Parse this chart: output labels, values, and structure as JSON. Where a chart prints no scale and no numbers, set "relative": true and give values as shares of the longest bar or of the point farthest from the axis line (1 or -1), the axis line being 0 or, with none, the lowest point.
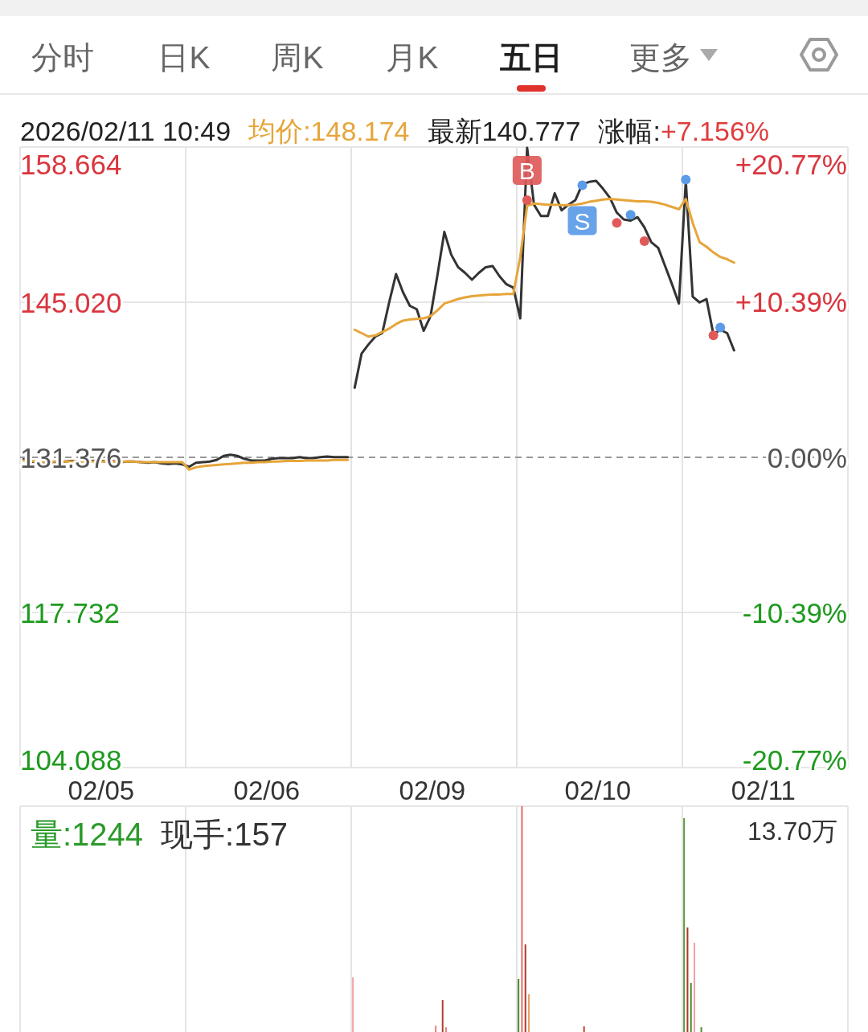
{
  "chart_data": [
    {
      "type": "other",
      "annotations": [
        "分时",
        "日K",
        "周K",
        "月K",
        "五日",
        "更多"
      ]
    },
    {
      "type": "line",
      "annotations": [
        "2026/02/11 10:49",
        "均价:148.174",
        "最新140.777",
        "涨幅:",
        "+7.156%"
      ],
      "categories": [
        null,
        null,
        null,
        null,
        null,
        null,
        null,
        null,
        null,
        null,
        null,
        null,
        null,
        null,
        null,
        null,
        null,
        null,
        null,
        null,
        null,
        null,
        null,
        null,
        null,
        null,
        null,
        null,
        null,
        null,
        null,
        null,
        null,
        null,
        null,
        null,
        null,
        null,
        null,
        null,
        null,
        null,
        null,
        null,
        null,
        null,
        null,
        null,
        null,
        null,
        null,
        null,
        null,
        null,
        null,
        null,
        null,
        null,
        null,
        null,
        null,
        null,
        null,
        null,
        null,
        null,
        null,
        null,
        null,
        null,
        null,
        null,
        null,
        null,
        null,
        null,
        null,
        null,
        null,
        null,
        null,
        null,
        null,
        null,
        null,
        null,
        null,
        null,
        null,
        null,
        null,
        null,
        null,
        null,
        null,
        null,
        null,
        null,
        null,
        null,
        null,
        null,
        null,
        null,
        null,
        null,
        null,
        null,
        null,
        null,
        null,
        null,
        null,
        null,
        null,
        null,
        null,
        null,
        null,
        null
      ],
      "series": [
        {
          "color": "#333333",
          "values": [
            131.2,
            131.0,
            130.9,
            130.8,
            130.85,
            130.9,
            131.0,
            131.05,
            131.0,
            131.1,
            131.05,
            131.1,
            131.0,
            131.05,
            130.95,
            131.0,
            131.0,
            130.95,
            130.9,
            130.95,
            130.85,
            130.8,
            130.85,
            130.75,
            130.55,
            130.9,
            130.95,
            131.0,
            131.15,
            131.5,
            131.6,
            131.5,
            131.25,
            131.1,
            131.1,
            131.1,
            131.25,
            131.3,
            131.3,
            131.3,
            131.4,
            131.3,
            131.3,
            131.4,
            131.45,
            131.4,
            131.4,
            131.4,
            null,
            null,
            null,
            null,
            null,
            null,
            null,
            null,
            null,
            null,
            null,
            null,
            null,
            null,
            null,
            null,
            null,
            null,
            null,
            null,
            null,
            null,
            null,
            null,
            null,
            null,
            null,
            null,
            null,
            null,
            null,
            null,
            null,
            null,
            null,
            null,
            null,
            null,
            null,
            null,
            null,
            null,
            null,
            null,
            null,
            null,
            null,
            null,
            null,
            null,
            null,
            null,
            null,
            null,
            null,
            null,
            null,
            null,
            null,
            null,
            null,
            null,
            null,
            null,
            null,
            null,
            null,
            null,
            null,
            null,
            null,
            null
          ]
        },
        {
          "color": "#333333",
          "values": [
            null,
            null,
            null,
            null,
            null,
            null,
            null,
            null,
            null,
            null,
            null,
            null,
            null,
            null,
            null,
            null,
            null,
            null,
            null,
            null,
            null,
            null,
            null,
            null,
            null,
            null,
            null,
            null,
            null,
            null,
            null,
            null,
            null,
            null,
            null,
            null,
            null,
            null,
            null,
            null,
            null,
            null,
            null,
            null,
            null,
            null,
            null,
            null,
            137.5,
            140.5,
            141.3,
            142.0,
            142.3,
            145.0,
            147.5,
            145.9,
            144.7,
            144.4,
            142.5,
            143.8,
            147.4,
            151.2,
            149.2,
            148.1,
            147.6,
            147.0,
            147.6,
            148.1,
            148.2,
            147.3,
            146.6,
            146.3,
            143.6,
            158.6,
            153.6,
            152.6,
            152.6,
            154.6,
            153.1,
            153.6,
            154.0,
            155.4,
            155.6,
            155.7,
            155.0,
            154.2,
            152.9,
            152.3,
            152.2,
            152.5,
            151.6,
            150.3,
            149.8,
            148.2,
            146.6,
            144.9,
            155.7,
            145.5,
            145.0,
            145.3,
            142.2,
            142.6,
            142.3,
            140.78,
            null,
            null,
            null,
            null,
            null,
            null,
            null,
            null,
            null,
            null,
            null,
            null,
            null,
            null,
            null,
            null
          ]
        },
        {
          "color": "#e6a53a",
          "values": [
            131.1,
            131.05,
            131.0,
            131.0,
            131.0,
            131.0,
            131.0,
            131.0,
            131.0,
            131.0,
            131.0,
            131.0,
            131.0,
            131.0,
            131.0,
            131.0,
            131.0,
            130.95,
            130.95,
            130.95,
            130.95,
            130.95,
            130.95,
            130.95,
            130.3,
            130.5,
            130.6,
            130.65,
            130.7,
            130.75,
            130.8,
            130.85,
            130.9,
            130.9,
            130.95,
            130.95,
            131.0,
            131.0,
            131.05,
            131.05,
            131.05,
            131.1,
            131.1,
            131.1,
            131.1,
            131.15,
            131.15,
            131.15,
            null,
            null,
            null,
            null,
            null,
            null,
            null,
            null,
            null,
            null,
            null,
            null,
            null,
            null,
            null,
            null,
            null,
            null,
            null,
            null,
            null,
            null,
            null,
            null,
            null,
            null,
            null,
            null,
            null,
            null,
            null,
            null,
            null,
            null,
            null,
            null,
            null,
            null,
            null,
            null,
            null,
            null,
            null,
            null,
            null,
            null,
            null,
            null,
            null,
            null,
            null,
            null,
            null,
            null,
            null,
            null,
            null,
            null,
            null,
            null,
            null,
            null,
            null,
            null,
            null,
            null,
            null,
            null,
            null,
            null,
            null,
            null
          ]
        },
        {
          "color": "#e6a53a",
          "values": [
            null,
            null,
            null,
            null,
            null,
            null,
            null,
            null,
            null,
            null,
            null,
            null,
            null,
            null,
            null,
            null,
            null,
            null,
            null,
            null,
            null,
            null,
            null,
            null,
            null,
            null,
            null,
            null,
            null,
            null,
            null,
            null,
            null,
            null,
            null,
            null,
            null,
            null,
            null,
            null,
            null,
            null,
            null,
            null,
            null,
            null,
            null,
            null,
            142.6,
            142.3,
            142.0,
            142.1,
            142.4,
            142.7,
            143.1,
            143.4,
            143.5,
            143.55,
            143.6,
            143.8,
            144.3,
            144.9,
            145.1,
            145.3,
            145.45,
            145.55,
            145.6,
            145.65,
            145.7,
            145.7,
            145.75,
            145.75,
            149.0,
            153.5,
            153.7,
            153.65,
            153.6,
            153.6,
            153.55,
            153.55,
            153.6,
            153.7,
            153.85,
            153.95,
            154.05,
            154.1,
            154.05,
            154.0,
            153.95,
            153.9,
            153.9,
            153.85,
            153.75,
            153.6,
            153.4,
            153.2,
            154.1,
            152.0,
            150.3,
            149.9,
            149.4,
            149.0,
            148.8,
            148.5,
            null,
            null,
            null,
            null,
            null,
            null,
            null,
            null,
            null,
            null,
            null,
            null,
            null,
            null,
            null,
            null
          ]
        },
        {
          "type": "scatter",
          "color": "#e05a5a",
          "values": [
            null,
            null,
            null,
            null,
            null,
            null,
            null,
            null,
            null,
            null,
            null,
            null,
            null,
            null,
            null,
            null,
            null,
            null,
            null,
            null,
            null,
            null,
            null,
            null,
            null,
            null,
            null,
            null,
            null,
            null,
            null,
            null,
            null,
            null,
            null,
            null,
            null,
            null,
            null,
            null,
            null,
            null,
            null,
            null,
            null,
            null,
            null,
            null,
            null,
            null,
            null,
            null,
            null,
            null,
            null,
            null,
            null,
            null,
            null,
            null,
            null,
            null,
            null,
            null,
            null,
            null,
            null,
            null,
            null,
            null,
            null,
            null,
            null,
            154.0,
            null,
            null,
            null,
            null,
            null,
            null,
            null,
            null,
            null,
            null,
            null,
            null,
            152.0,
            null,
            null,
            null,
            150.4,
            null,
            null,
            null,
            null,
            null,
            null,
            null,
            null,
            null,
            142.1,
            null,
            null,
            null,
            null,
            null,
            null,
            null,
            null,
            null,
            null,
            null,
            null,
            null,
            null,
            null,
            null,
            null,
            null,
            null
          ],
          "value_labels": [
            null,
            null,
            null,
            null,
            null,
            null,
            null,
            null,
            null,
            null,
            null,
            null,
            null,
            null,
            null,
            null,
            null,
            null,
            null,
            null,
            null,
            null,
            null,
            null,
            null,
            null,
            null,
            null,
            null,
            null,
            null,
            null,
            null,
            null,
            null,
            null,
            null,
            null,
            null,
            null,
            null,
            null,
            null,
            null,
            null,
            null,
            null,
            null,
            null,
            null,
            null,
            null,
            null,
            null,
            null,
            null,
            null,
            null,
            null,
            null,
            null,
            null,
            null,
            null,
            null,
            null,
            null,
            null,
            null,
            null,
            null,
            null,
            null,
            "B",
            null,
            null,
            null,
            null,
            null,
            null,
            null,
            null,
            null,
            null,
            null,
            null,
            null,
            null,
            null,
            null,
            null,
            null,
            null,
            null,
            null,
            null,
            null,
            null,
            null,
            null,
            null,
            null,
            null,
            null,
            null,
            null,
            null,
            null,
            null,
            null,
            null,
            null,
            null,
            null,
            null,
            null,
            null,
            null,
            null,
            null
          ]
        },
        {
          "type": "scatter",
          "color": "#5b9be8",
          "values": [
            null,
            null,
            null,
            null,
            null,
            null,
            null,
            null,
            null,
            null,
            null,
            null,
            null,
            null,
            null,
            null,
            null,
            null,
            null,
            null,
            null,
            null,
            null,
            null,
            null,
            null,
            null,
            null,
            null,
            null,
            null,
            null,
            null,
            null,
            null,
            null,
            null,
            null,
            null,
            null,
            null,
            null,
            null,
            null,
            null,
            null,
            null,
            null,
            null,
            null,
            null,
            null,
            null,
            null,
            null,
            null,
            null,
            null,
            null,
            null,
            null,
            null,
            null,
            null,
            null,
            null,
            null,
            null,
            null,
            null,
            null,
            null,
            null,
            null,
            null,
            null,
            null,
            null,
            null,
            null,
            null,
            155.3,
            null,
            null,
            null,
            null,
            null,
            null,
            152.7,
            null,
            null,
            null,
            null,
            null,
            null,
            null,
            155.8,
            null,
            null,
            null,
            null,
            142.8,
            null,
            null,
            null,
            null,
            null,
            null,
            null,
            null,
            null,
            null,
            null,
            null,
            null,
            null,
            null,
            null,
            null,
            null
          ],
          "value_labels": [
            null,
            null,
            null,
            null,
            null,
            null,
            null,
            null,
            null,
            null,
            null,
            null,
            null,
            null,
            null,
            null,
            null,
            null,
            null,
            null,
            null,
            null,
            null,
            null,
            null,
            null,
            null,
            null,
            null,
            null,
            null,
            null,
            null,
            null,
            null,
            null,
            null,
            null,
            null,
            null,
            null,
            null,
            null,
            null,
            null,
            null,
            null,
            null,
            null,
            null,
            null,
            null,
            null,
            null,
            null,
            null,
            null,
            null,
            null,
            null,
            null,
            null,
            null,
            null,
            null,
            null,
            null,
            null,
            null,
            null,
            null,
            null,
            null,
            null,
            null,
            null,
            null,
            null,
            null,
            null,
            null,
            "S",
            null,
            null,
            null,
            null,
            null,
            null,
            null,
            null,
            null,
            null,
            null,
            null,
            null,
            null,
            null,
            null,
            null,
            null,
            null,
            null,
            null,
            null,
            null,
            null,
            null,
            null,
            null,
            null,
            null,
            null,
            null,
            null,
            null,
            null,
            null,
            null,
            null,
            null
          ]
        }
      ],
      "ylim": [
        104.088,
        158.664
      ],
      "yticks": [
        104.088,
        117.732,
        131.376,
        {
          "value": 145.02,
          "label": "145.020"
        },
        158.664
      ],
      "y2lim": [
        -20.77,
        20.77
      ],
      "y2ticks": [
        {
          "value": -20.77,
          "label": "-20.77%"
        },
        {
          "value": -10.39,
          "label": "-10.39%"
        },
        {
          "value": 0,
          "label": "0.00%"
        },
        {
          "value": 10.39,
          "label": "+10.39%"
        },
        {
          "value": 20.77,
          "label": "+20.77%"
        }
      ],
      "ref_lines": [
        {
          "axis": "y",
          "value": 131.376,
          "line_style": "dashed",
          "color": "#999999"
        }
      ],
      "grid": true
    },
    {
      "type": "bar",
      "relative": true,
      "annotations": [
        "量:1244",
        "现手:157",
        "13.70万"
      ],
      "categories": [
        null,
        null,
        null,
        null,
        null,
        null,
        null,
        null,
        null,
        null,
        null,
        null,
        null,
        null,
        null,
        null,
        null,
        null,
        null,
        null,
        null,
        null,
        null,
        "02/05",
        null,
        null,
        null,
        null,
        null,
        null,
        null,
        null,
        null,
        null,
        null,
        null,
        null,
        null,
        null,
        null,
        null,
        null,
        null,
        null,
        null,
        null,
        null,
        null,
        null,
        null,
        null,
        null,
        null,
        null,
        null,
        null,
        null,
        null,
        null,
        null,
        null,
        null,
        null,
        null,
        null,
        null,
        null,
        null,
        null,
        null,
        null,
        "02/06",
        null,
        null,
        null,
        null,
        null,
        null,
        null,
        null,
        null,
        null,
        null,
        null,
        null,
        null,
        null,
        null,
        null,
        null,
        null,
        null,
        null,
        null,
        null,
        null,
        null,
        null,
        null,
        null,
        null,
        null,
        null,
        null,
        null,
        null,
        null,
        null,
        null,
        null,
        null,
        null,
        null,
        null,
        null,
        null,
        null,
        null,
        null,
        "02/09",
        null,
        null,
        null,
        null,
        null,
        null,
        null,
        null,
        null,
        null,
        null,
        null,
        null,
        null,
        null,
        null,
        null,
        null,
        null,
        null,
        null,
        null,
        null,
        null,
        null,
        null,
        null,
        null,
        null,
        null,
        null,
        null,
        null,
        null,
        null,
        null,
        null,
        null,
        null,
        null,
        null,
        null,
        null,
        null,
        null,
        null,
        null,
        "02/10",
        null,
        null,
        null,
        null,
        null,
        null,
        null,
        null,
        null,
        null,
        null,
        null,
        null,
        null,
        null,
        null,
        null,
        null,
        null,
        null,
        null,
        null,
        null,
        null,
        null,
        null,
        null,
        null,
        null,
        null,
        null,
        null,
        null,
        null,
        null,
        null,
        null,
        null,
        null,
        null,
        null,
        null,
        null,
        null,
        null,
        null,
        null,
        "02/11",
        null,
        null,
        null,
        null,
        null,
        null,
        null,
        null,
        null,
        null,
        null,
        null,
        null,
        null,
        null,
        null,
        null,
        null,
        null,
        null,
        null,
        null,
        null,
        null
      ],
      "values": [
        null,
        null,
        null,
        null,
        null,
        null,
        null,
        null,
        null,
        null,
        null,
        null,
        null,
        null,
        null,
        null,
        null,
        null,
        null,
        null,
        null,
        null,
        null,
        null,
        null,
        null,
        null,
        null,
        null,
        null,
        null,
        null,
        null,
        null,
        null,
        null,
        null,
        null,
        null,
        null,
        null,
        null,
        null,
        null,
        null,
        null,
        null,
        null,
        null,
        null,
        null,
        null,
        null,
        null,
        null,
        null,
        null,
        null,
        null,
        null,
        null,
        null,
        null,
        null,
        null,
        null,
        null,
        null,
        null,
        null,
        null,
        null,
        null,
        null,
        null,
        null,
        null,
        null,
        null,
        null,
        null,
        null,
        null,
        null,
        null,
        null,
        null,
        null,
        null,
        null,
        null,
        null,
        null,
        null,
        null,
        null,
        0.242,
        null,
        null,
        null,
        null,
        null,
        null,
        null,
        null,
        null,
        null,
        null,
        null,
        null,
        null,
        null,
        null,
        null,
        null,
        null,
        null,
        null,
        null,
        null,
        0.028,
        null,
        0.142,
        0.021,
        null,
        null,
        null,
        null,
        null,
        null,
        null,
        null,
        null,
        null,
        null,
        null,
        null,
        null,
        null,
        null,
        null,
        null,
        null,
        null,
        0.235,
        1,
        0.388,
        0.167,
        null,
        null,
        null,
        null,
        null,
        null,
        null,
        null,
        null,
        null,
        null,
        null,
        null,
        null,
        null,
        0.025,
        null,
        null,
        null,
        null,
        null,
        null,
        null,
        null,
        null,
        null,
        null,
        null,
        null,
        null,
        null,
        null,
        null,
        null,
        null,
        null,
        null,
        null,
        null,
        null,
        null,
        null,
        null,
        null,
        0.947,
        0.463,
        0.217,
        0.395,
        null,
        0.021,
        null,
        null,
        null,
        null,
        null,
        null,
        null,
        null,
        null,
        null,
        null,
        null,
        null,
        null,
        null,
        null,
        null,
        null,
        null,
        null,
        null,
        null,
        null,
        null,
        null,
        null,
        null,
        null,
        null,
        null,
        null,
        null,
        null,
        null,
        null,
        null,
        null,
        null,
        null,
        null,
        null,
        null
      ],
      "colors": [
        null,
        null,
        null,
        null,
        null,
        null,
        null,
        null,
        null,
        null,
        null,
        null,
        null,
        null,
        null,
        null,
        null,
        null,
        null,
        null,
        null,
        null,
        null,
        null,
        null,
        null,
        null,
        null,
        null,
        null,
        null,
        null,
        null,
        null,
        null,
        null,
        null,
        null,
        null,
        null,
        null,
        null,
        null,
        null,
        null,
        null,
        null,
        null,
        null,
        null,
        null,
        null,
        null,
        null,
        null,
        null,
        null,
        null,
        null,
        null,
        null,
        null,
        null,
        null,
        null,
        null,
        null,
        null,
        null,
        null,
        null,
        null,
        null,
        null,
        null,
        null,
        null,
        null,
        null,
        null,
        null,
        null,
        null,
        null,
        null,
        null,
        null,
        null,
        null,
        null,
        null,
        null,
        null,
        null,
        null,
        null,
        "#f0a0a0",
        null,
        null,
        null,
        null,
        null,
        null,
        null,
        null,
        null,
        null,
        null,
        null,
        null,
        null,
        null,
        null,
        null,
        null,
        null,
        null,
        null,
        null,
        null,
        "#e88080",
        null,
        "#b04030",
        "#e88080",
        null,
        null,
        null,
        null,
        null,
        null,
        null,
        null,
        null,
        null,
        null,
        null,
        null,
        null,
        null,
        null,
        null,
        null,
        null,
        null,
        "#4a8a2a",
        "#e86a6a",
        "#a83a2a",
        "#e8a060",
        null,
        null,
        null,
        null,
        null,
        null,
        null,
        null,
        null,
        null,
        null,
        null,
        null,
        null,
        null,
        "#c04030",
        null,
        null,
        null,
        null,
        null,
        null,
        null,
        null,
        null,
        null,
        null,
        null,
        null,
        null,
        null,
        null,
        null,
        null,
        null,
        null,
        null,
        null,
        null,
        null,
        null,
        null,
        null,
        null,
        "#5a9a3a",
        "#a83a2a",
        "#4a8a2a",
        "#f0a0a0",
        null,
        "#4a8a2a",
        null,
        null,
        null,
        null,
        null,
        null,
        null,
        null,
        null,
        null,
        null,
        null,
        null,
        null,
        null,
        null,
        null,
        null,
        null,
        null,
        null,
        null,
        null,
        null,
        null,
        null,
        null,
        null,
        null,
        null,
        null,
        null,
        null,
        null,
        null,
        null,
        null,
        null,
        null,
        null,
        null,
        null
      ],
      "grid": true
    }
  ]
}
